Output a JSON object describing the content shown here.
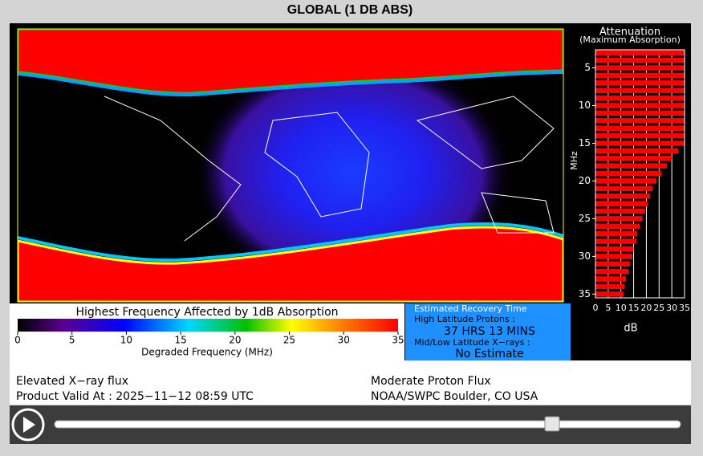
{
  "header": {
    "title": "GLOBAL (1 DB ABS)"
  },
  "map": {
    "colorbar": {
      "title": "Highest Frequency Affected by 1dB Absorption",
      "xlabel": "Degraded Frequency (MHz)",
      "range": [
        0,
        35
      ],
      "ticks": [
        0,
        5,
        10,
        15,
        20,
        25,
        30,
        35
      ]
    }
  },
  "recovery": {
    "title": "Estimated Recovery Time",
    "high_label": "High Latitude Protons :",
    "high_value": "37 HRS 13 MINS",
    "low_label": "Mid/Low Latitude X−rays :",
    "low_value": "No Estimate"
  },
  "attenuation": {
    "title": "Attenuation",
    "subtitle": "(Maximum Absorption)",
    "ylabel": "MHz",
    "xlabel": "dB",
    "xlim": [
      0,
      35
    ],
    "xticks": [
      0,
      5,
      10,
      15,
      20,
      25,
      30,
      35
    ],
    "ylim": [
      2.6,
      35.5
    ],
    "yticks": [
      5,
      10,
      15,
      20,
      25,
      30,
      35
    ],
    "frequencies": [
      3,
      4,
      5,
      6,
      7,
      8,
      9,
      10,
      11,
      12,
      13,
      14,
      15,
      16,
      17,
      18,
      19,
      20,
      21,
      22,
      23,
      24,
      25,
      26,
      27,
      28,
      29,
      30,
      31,
      32,
      33,
      34,
      35
    ],
    "values": [
      35,
      35,
      35,
      35,
      35,
      35,
      35,
      35,
      35,
      35,
      35,
      35,
      35,
      32.5,
      30,
      28,
      26,
      24,
      22.5,
      21.5,
      20.5,
      19.5,
      18.5,
      17.5,
      16.5,
      16,
      15,
      14.5,
      13.5,
      13,
      12,
      11.5,
      11
    ]
  },
  "footer": {
    "left1": "Elevated X−ray flux",
    "left2": "Product Valid At : 2025−11−12 08:59 UTC",
    "right1": "Moderate Proton Flux",
    "right2": "NOAA/SWPC Boulder, CO USA"
  }
}
